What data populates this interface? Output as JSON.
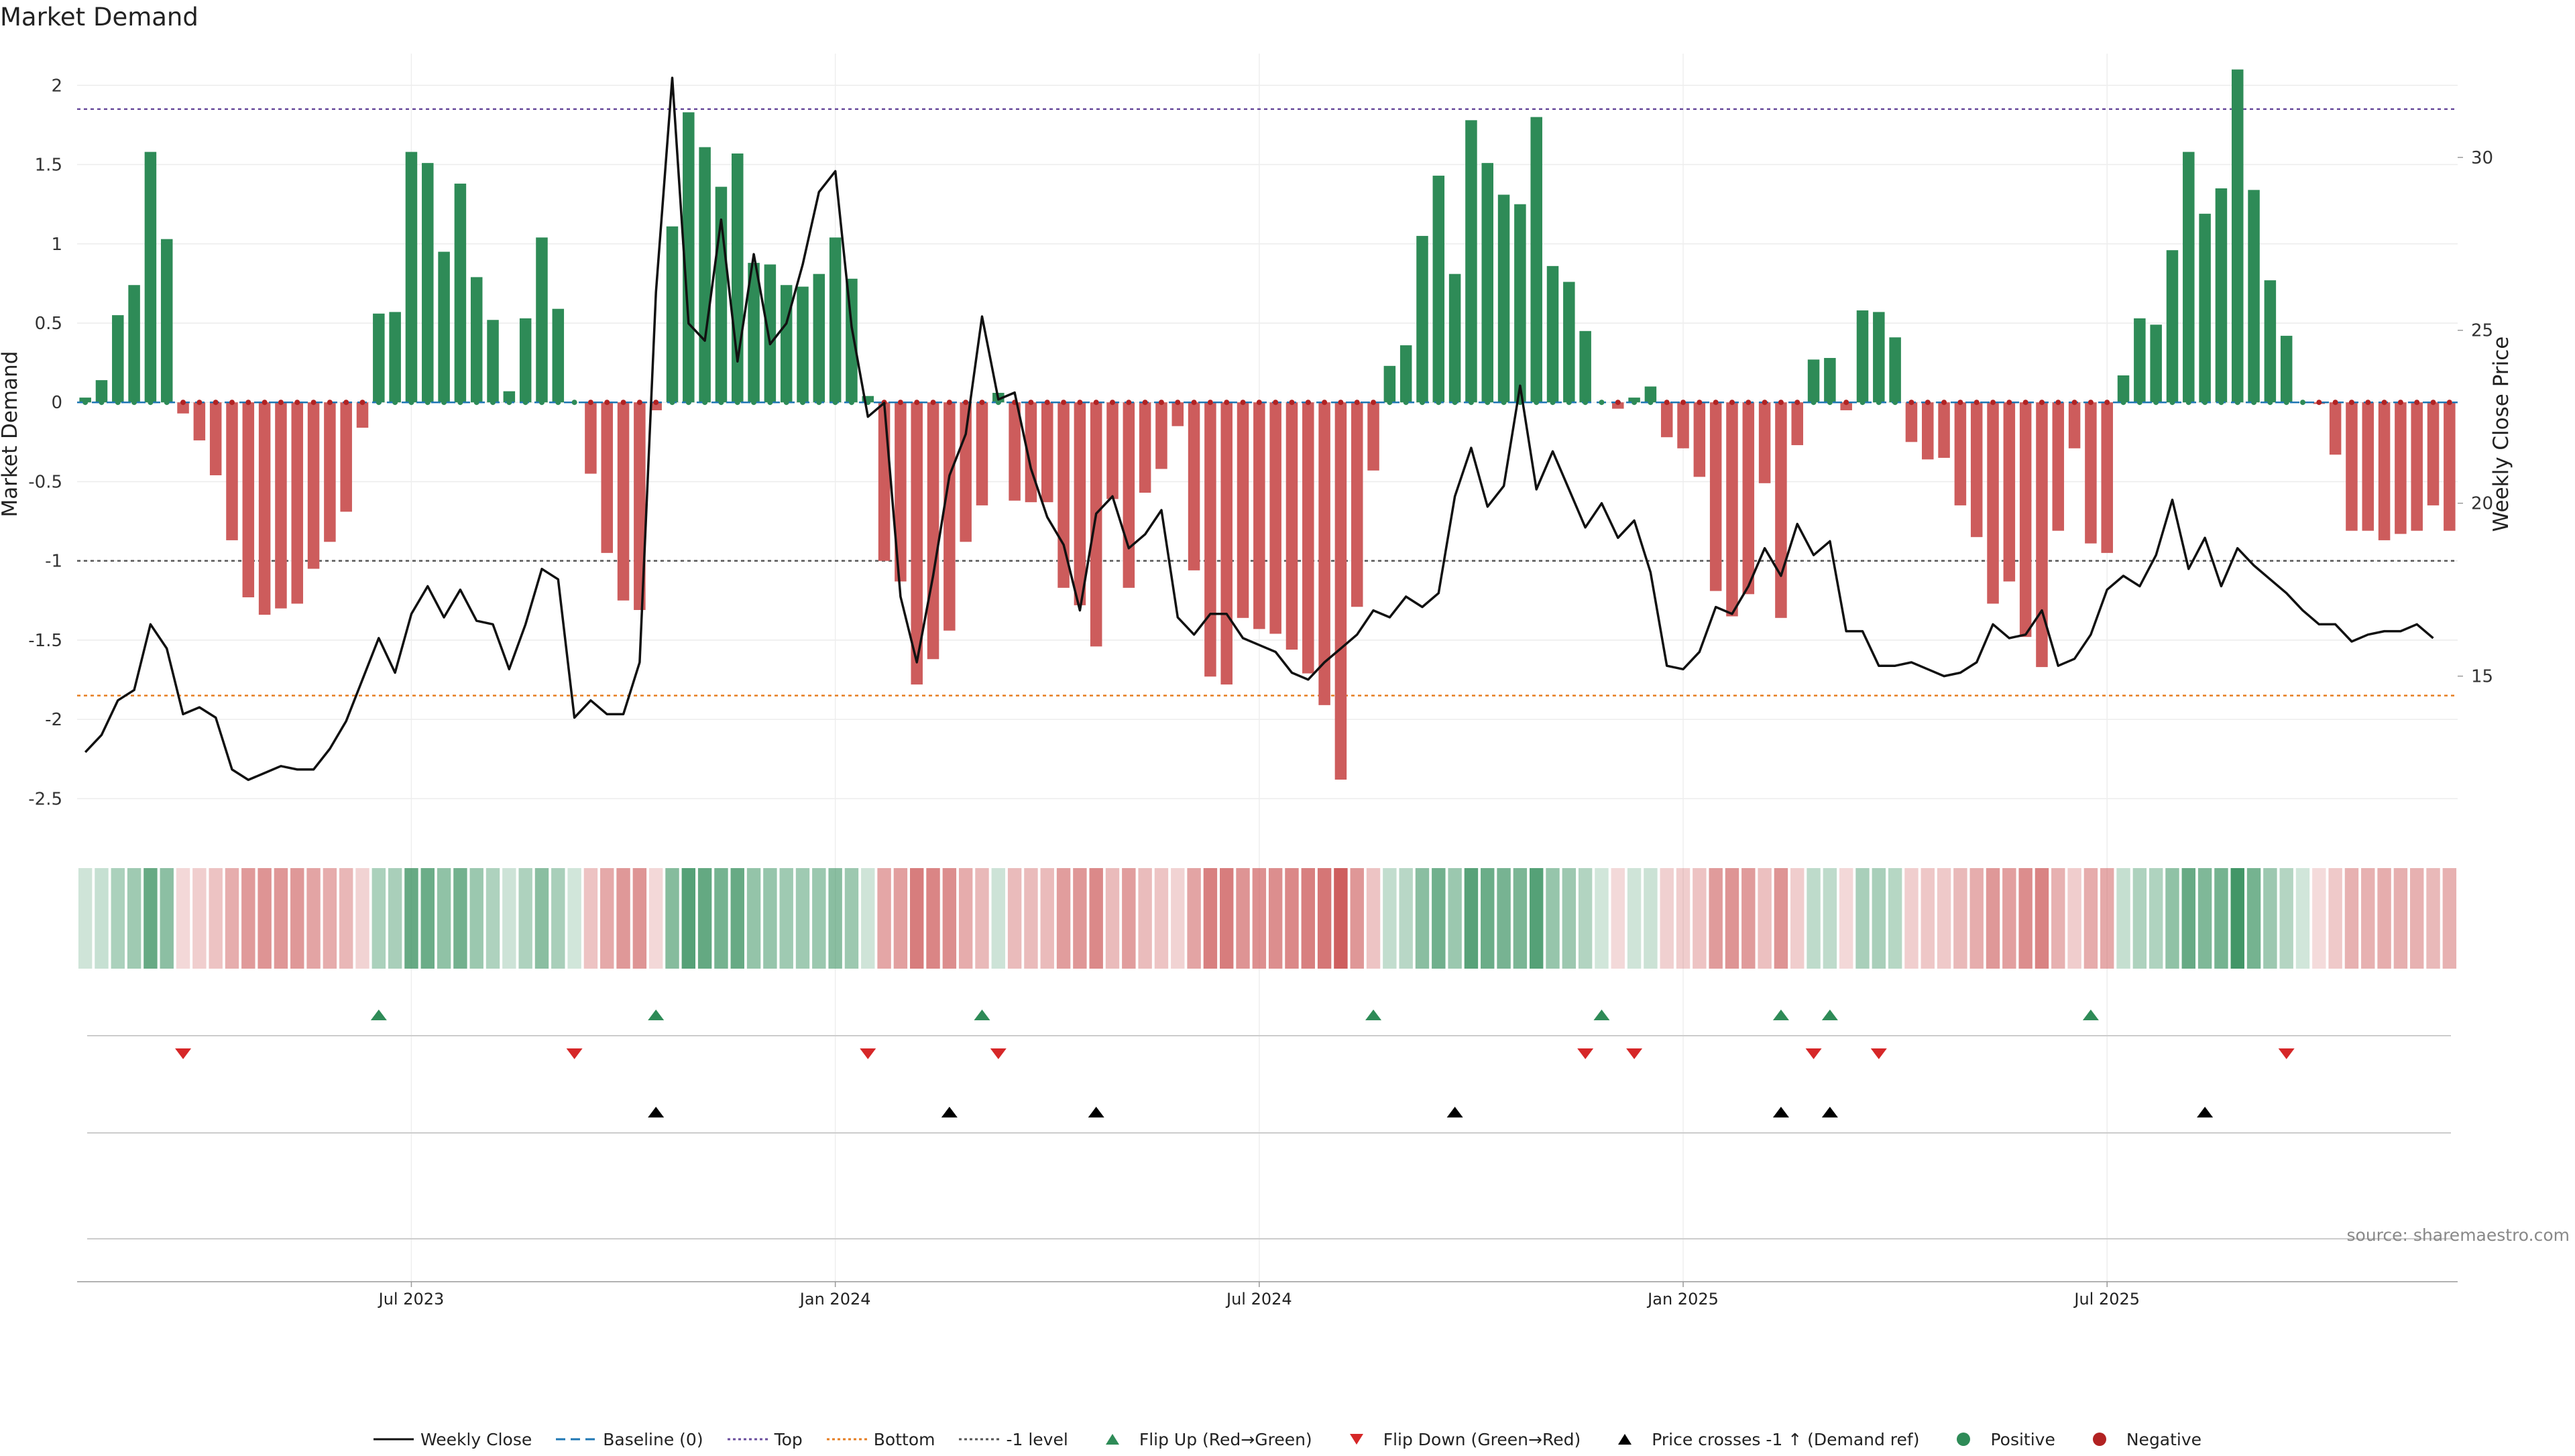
{
  "chart_data": {
    "type": "bar",
    "title": "Market Demand",
    "ylabel": "Market Demand",
    "y2label": "Weekly Close Price",
    "ylim": [
      -2.5,
      2.2
    ],
    "y2lim": [
      11,
      33
    ],
    "yticks": [
      2,
      1.5,
      1,
      0.5,
      0,
      -0.5,
      -1,
      -1.5,
      -2,
      -2.5
    ],
    "y2ticks": [
      30,
      25,
      20,
      15
    ],
    "levels": {
      "top": 1.85,
      "bottom": -1.85,
      "minus_one": -1,
      "baseline": 0
    },
    "x_ticks": [
      {
        "label": "Jul 2023",
        "week": 20
      },
      {
        "label": "Jan 2024",
        "week": 46
      },
      {
        "label": "Jul 2024",
        "week": 72
      },
      {
        "label": "Jan 2025",
        "week": 98
      },
      {
        "label": "Jul 2025",
        "week": 124
      }
    ],
    "demand": [
      0.03,
      0.14,
      0.55,
      0.74,
      1.58,
      1.03,
      -0.07,
      -0.24,
      -0.46,
      -0.87,
      -1.23,
      -1.34,
      -1.3,
      -1.27,
      -1.05,
      -0.88,
      -0.69,
      -0.16,
      0.56,
      0.57,
      1.58,
      1.51,
      0.95,
      1.38,
      0.79,
      0.52,
      0.07,
      0.53,
      1.04,
      0.59,
      0.0,
      -0.45,
      -0.95,
      -1.25,
      -1.31,
      -0.05,
      1.11,
      1.83,
      1.61,
      1.36,
      1.57,
      0.88,
      0.87,
      0.74,
      0.73,
      0.81,
      1.04,
      0.78,
      0.04,
      -1.0,
      -1.13,
      -1.78,
      -1.62,
      -1.44,
      -0.88,
      -0.65,
      0.06,
      -0.62,
      -0.63,
      -0.63,
      -1.17,
      -1.28,
      -1.54,
      -0.61,
      -1.17,
      -0.57,
      -0.42,
      -0.15,
      -1.06,
      -1.73,
      -1.78,
      -1.36,
      -1.43,
      -1.46,
      -1.56,
      -1.71,
      -1.91,
      -2.38,
      -1.29,
      -0.43,
      0.23,
      0.36,
      1.05,
      1.43,
      0.81,
      1.78,
      1.51,
      1.31,
      1.25,
      1.8,
      0.86,
      0.76,
      0.45,
      0.0,
      -0.04,
      0.03,
      0.1,
      -0.22,
      -0.29,
      -0.47,
      -1.19,
      -1.35,
      -1.21,
      -0.51,
      -1.36,
      -0.27,
      0.27,
      0.28,
      -0.05,
      0.58,
      0.57,
      0.41,
      -0.25,
      -0.36,
      -0.35,
      -0.65,
      -0.85,
      -1.27,
      -1.13,
      -1.48,
      -1.67,
      -0.81,
      -0.29,
      -0.89,
      -0.95,
      0.17,
      0.53,
      0.49,
      0.96,
      1.58,
      1.19,
      1.35,
      2.1,
      1.34,
      0.77,
      0.42,
      0.0,
      -0.01,
      -0.33,
      -0.81,
      -0.81,
      -0.87,
      -0.83,
      -0.81,
      -0.65,
      -0.81
    ],
    "close": [
      12.8,
      13.3,
      14.3,
      14.6,
      16.5,
      15.8,
      13.9,
      14.1,
      13.8,
      12.3,
      12.0,
      12.2,
      12.4,
      12.3,
      12.3,
      12.9,
      13.7,
      14.9,
      16.1,
      15.1,
      16.8,
      17.6,
      16.7,
      17.5,
      16.6,
      16.5,
      15.2,
      16.5,
      18.1,
      17.8,
      13.8,
      14.3,
      13.9,
      13.9,
      15.4,
      26.1,
      32.3,
      25.2,
      24.7,
      28.2,
      24.1,
      27.2,
      24.6,
      25.2,
      26.9,
      29.0,
      29.6,
      25.1,
      22.5,
      22.9,
      17.3,
      15.4,
      17.9,
      20.8,
      22.0,
      25.4,
      23.0,
      23.2,
      21.0,
      19.6,
      18.8,
      16.9,
      19.7,
      20.2,
      18.7,
      19.1,
      19.8,
      16.7,
      16.2,
      16.8,
      16.8,
      16.1,
      15.9,
      15.7,
      15.1,
      14.9,
      15.4,
      15.8,
      16.2,
      16.9,
      16.7,
      17.3,
      17.0,
      17.4,
      20.2,
      21.6,
      19.9,
      20.5,
      23.4,
      20.4,
      21.5,
      20.4,
      19.3,
      20.0,
      19.0,
      19.5,
      18.0,
      15.3,
      15.2,
      15.7,
      17.0,
      16.8,
      17.6,
      18.7,
      17.9,
      19.4,
      18.5,
      18.9,
      16.3,
      16.3,
      15.3,
      15.3,
      15.4,
      15.2,
      15.0,
      15.1,
      15.4,
      16.5,
      16.1,
      16.2,
      16.9,
      15.3,
      15.5,
      16.2,
      17.5,
      17.9,
      17.6,
      18.5,
      20.1,
      18.1,
      19.0,
      17.6,
      18.7,
      18.2,
      17.8,
      17.4,
      16.9,
      16.5,
      16.5,
      16.0,
      16.2,
      16.3,
      16.3,
      16.5,
      16.1
    ],
    "flip_up_weeks": [
      18,
      35,
      55,
      79,
      93,
      104,
      107,
      123
    ],
    "flip_down_weeks": [
      6,
      30,
      48,
      56,
      92,
      95,
      106,
      110,
      135
    ],
    "cross_up_weeks": [
      35,
      53,
      62,
      84,
      104,
      107,
      130
    ]
  },
  "legend": [
    {
      "label": "Weekly Close",
      "kind": "line",
      "color": "#111111"
    },
    {
      "label": "Baseline (0)",
      "kind": "dash",
      "color": "#1f77b4"
    },
    {
      "label": "Top",
      "kind": "dot",
      "color": "#6a4c9c"
    },
    {
      "label": "Bottom",
      "kind": "dot",
      "color": "#e67e22"
    },
    {
      "label": "-1 level",
      "kind": "dot",
      "color": "#555555"
    },
    {
      "label": "Flip Up (Red→Green)",
      "kind": "tri-up",
      "color": "#2e8b57"
    },
    {
      "label": "Flip Down (Green→Red)",
      "kind": "tri-down",
      "color": "#d62728"
    },
    {
      "label": "Price crosses -1 ↑ (Demand ref)",
      "kind": "tri-up",
      "color": "#000000"
    },
    {
      "label": "Positive",
      "kind": "circle",
      "color": "#2e8b57"
    },
    {
      "label": "Negative",
      "kind": "circle",
      "color": "#b22222"
    }
  ],
  "source": "source: sharemaestro.com",
  "colors": {
    "positive": "#2e8b57",
    "negative": "#cd5c5c",
    "line": "#111111"
  }
}
